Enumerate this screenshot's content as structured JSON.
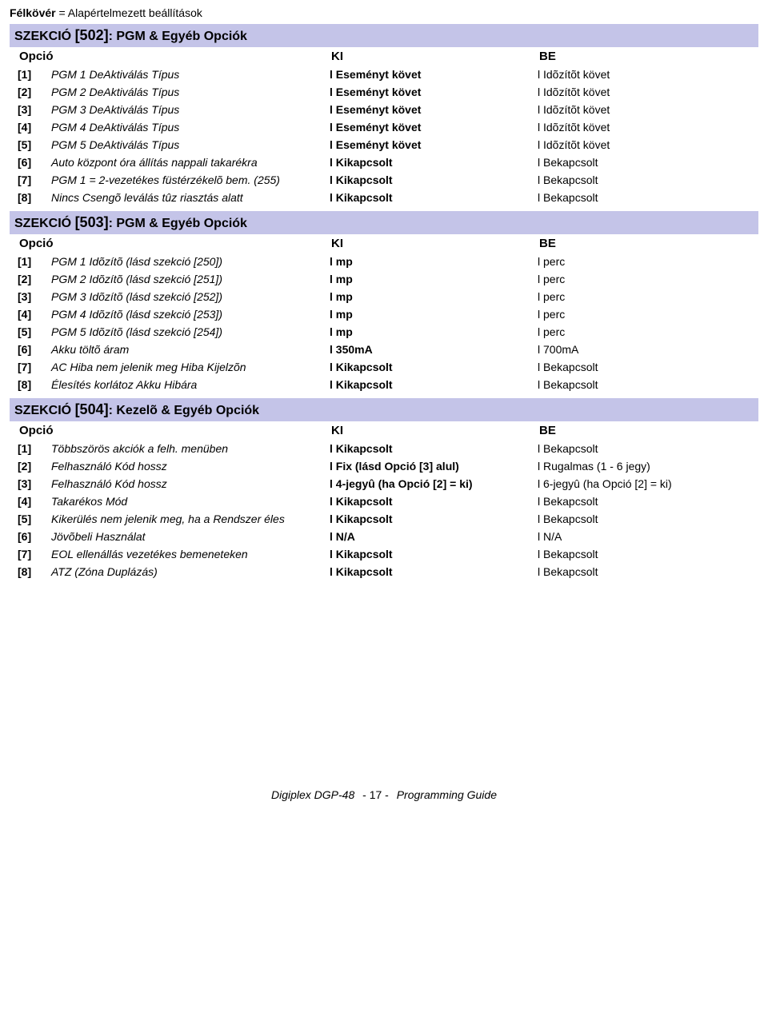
{
  "topNote": {
    "boldWord": "Félkövér",
    "rest": " = Alapértelmezett beállítások"
  },
  "sections": [
    {
      "titlePrefix": "SZEKCIÓ ",
      "titleNum": "[502]",
      "titleRest": ": PGM & Egyéb Opciók",
      "headers": {
        "opt": "Opció",
        "ki": "KI",
        "be": "BE"
      },
      "rows": [
        {
          "idx": "[1]",
          "desc": "PGM 1 DeAktiválás Típus",
          "ki": "l Eseményt követ",
          "kiBold": true,
          "be": "l Idõzítõt követ",
          "beBold": false
        },
        {
          "idx": "[2]",
          "desc": "PGM 2 DeAktiválás Típus",
          "ki": "l Eseményt követ",
          "kiBold": true,
          "be": "l Idõzítõt követ",
          "beBold": false
        },
        {
          "idx": "[3]",
          "desc": "PGM 3 DeAktiválás Típus",
          "ki": "l Eseményt követ",
          "kiBold": true,
          "be": "l Idõzítõt követ",
          "beBold": false
        },
        {
          "idx": "[4]",
          "desc": "PGM 4 DeAktiválás Típus",
          "ki": "l Eseményt követ",
          "kiBold": true,
          "be": "l Idõzítõt követ",
          "beBold": false
        },
        {
          "idx": "[5]",
          "desc": "PGM 5 DeAktiválás Típus",
          "ki": "l Eseményt követ",
          "kiBold": true,
          "be": "l Idõzítõt követ",
          "beBold": false
        },
        {
          "idx": "[6]",
          "desc": "Auto központ óra állítás nappali takarékra",
          "ki": "l Kikapcsolt",
          "kiBold": true,
          "be": "l Bekapcsolt",
          "beBold": false
        },
        {
          "idx": "[7]",
          "desc": "PGM 1 = 2-vezetékes füstérzékelõ bem. (255)",
          "ki": "l Kikapcsolt",
          "kiBold": true,
          "be": "l Bekapcsolt",
          "beBold": false
        },
        {
          "idx": "[8]",
          "desc": "Nincs Csengõ leválás tûz riasztás alatt",
          "ki": "l Kikapcsolt",
          "kiBold": true,
          "be": "l Bekapcsolt",
          "beBold": false
        }
      ]
    },
    {
      "titlePrefix": "SZEKCIÓ ",
      "titleNum": "[503]",
      "titleRest": ": PGM & Egyéb Opciók",
      "headers": {
        "opt": "Opció",
        "ki": "KI",
        "be": "BE"
      },
      "rows": [
        {
          "idx": "[1]",
          "desc": "PGM 1 Idõzítõ (lásd szekció [250])",
          "ki": "l mp",
          "kiBold": true,
          "be": "l perc",
          "beBold": false
        },
        {
          "idx": "[2]",
          "desc": "PGM 2 Idõzítõ (lásd szekció [251])",
          "ki": "l mp",
          "kiBold": true,
          "be": "l perc",
          "beBold": false
        },
        {
          "idx": "[3]",
          "desc": "PGM 3 Idõzítõ (lásd szekció [252])",
          "ki": "l mp",
          "kiBold": true,
          "be": "l perc",
          "beBold": false
        },
        {
          "idx": "[4]",
          "desc": "PGM 4 Idõzítõ (lásd szekció [253])",
          "ki": "l mp",
          "kiBold": true,
          "be": "l perc",
          "beBold": false
        },
        {
          "idx": "[5]",
          "desc": "PGM 5 Idõzítõ (lásd szekció [254])",
          "ki": "l mp",
          "kiBold": true,
          "be": "l perc",
          "beBold": false
        },
        {
          "idx": "[6]",
          "desc": "Akku töltõ áram",
          "ki": "l 350mA",
          "kiBold": true,
          "be": "l 700mA",
          "beBold": false
        },
        {
          "idx": "[7]",
          "desc": "AC Hiba nem jelenik meg Hiba Kijelzõn",
          "ki": "l Kikapcsolt",
          "kiBold": true,
          "be": "l Bekapcsolt",
          "beBold": false
        },
        {
          "idx": "[8]",
          "desc": "Élesítés korlátoz Akku Hibára",
          "ki": "l Kikapcsolt",
          "kiBold": true,
          "be": "l Bekapcsolt",
          "beBold": false
        }
      ]
    },
    {
      "titlePrefix": "SZEKCIÓ ",
      "titleNum": "[504]",
      "titleRest": ": Kezelõ & Egyéb Opciók",
      "headers": {
        "opt": "Opció",
        "ki": "KI",
        "be": "BE"
      },
      "rows": [
        {
          "idx": "[1]",
          "desc": "Többszörös akciók a felh. menüben",
          "ki": "l Kikapcsolt",
          "kiBold": true,
          "be": "l Bekapcsolt",
          "beBold": false
        },
        {
          "idx": "[2]",
          "desc": "Felhasználó Kód hossz",
          "ki": "l Fix (lásd Opció [3] alul)",
          "kiBold": true,
          "be": "l Rugalmas (1 - 6 jegy)",
          "beBold": false
        },
        {
          "idx": "[3]",
          "desc": "Felhasználó Kód hossz",
          "ki": "l 4-jegyû (ha Opció [2] = ki)",
          "kiBold": true,
          "be": "l 6-jegyû (ha Opció [2] = ki)",
          "beBold": false
        },
        {
          "idx": "[4]",
          "desc": "Takarékos Mód",
          "ki": "l Kikapcsolt",
          "kiBold": true,
          "be": "l Bekapcsolt",
          "beBold": false
        },
        {
          "idx": "[5]",
          "desc": "Kikerülés nem jelenik meg, ha a Rendszer éles",
          "ki": "l Kikapcsolt",
          "kiBold": true,
          "be": "l Bekapcsolt",
          "beBold": false
        },
        {
          "idx": "[6]",
          "desc": "Jövõbeli Használat",
          "ki": "l N/A",
          "kiBold": true,
          "be": "l N/A",
          "beBold": false
        },
        {
          "idx": "[7]",
          "desc": "EOL ellenállás vezetékes bemeneteken",
          "ki": "l Kikapcsolt",
          "kiBold": true,
          "be": "l Bekapcsolt",
          "beBold": false
        },
        {
          "idx": "[8]",
          "desc": "ATZ (Zóna Duplázás)",
          "ki": "l Kikapcsolt",
          "kiBold": true,
          "be": "l Bekapcsolt",
          "beBold": false
        }
      ]
    }
  ],
  "footer": {
    "left": "Digiplex DGP-48",
    "page": "- 17 -",
    "right": "Programming Guide"
  }
}
